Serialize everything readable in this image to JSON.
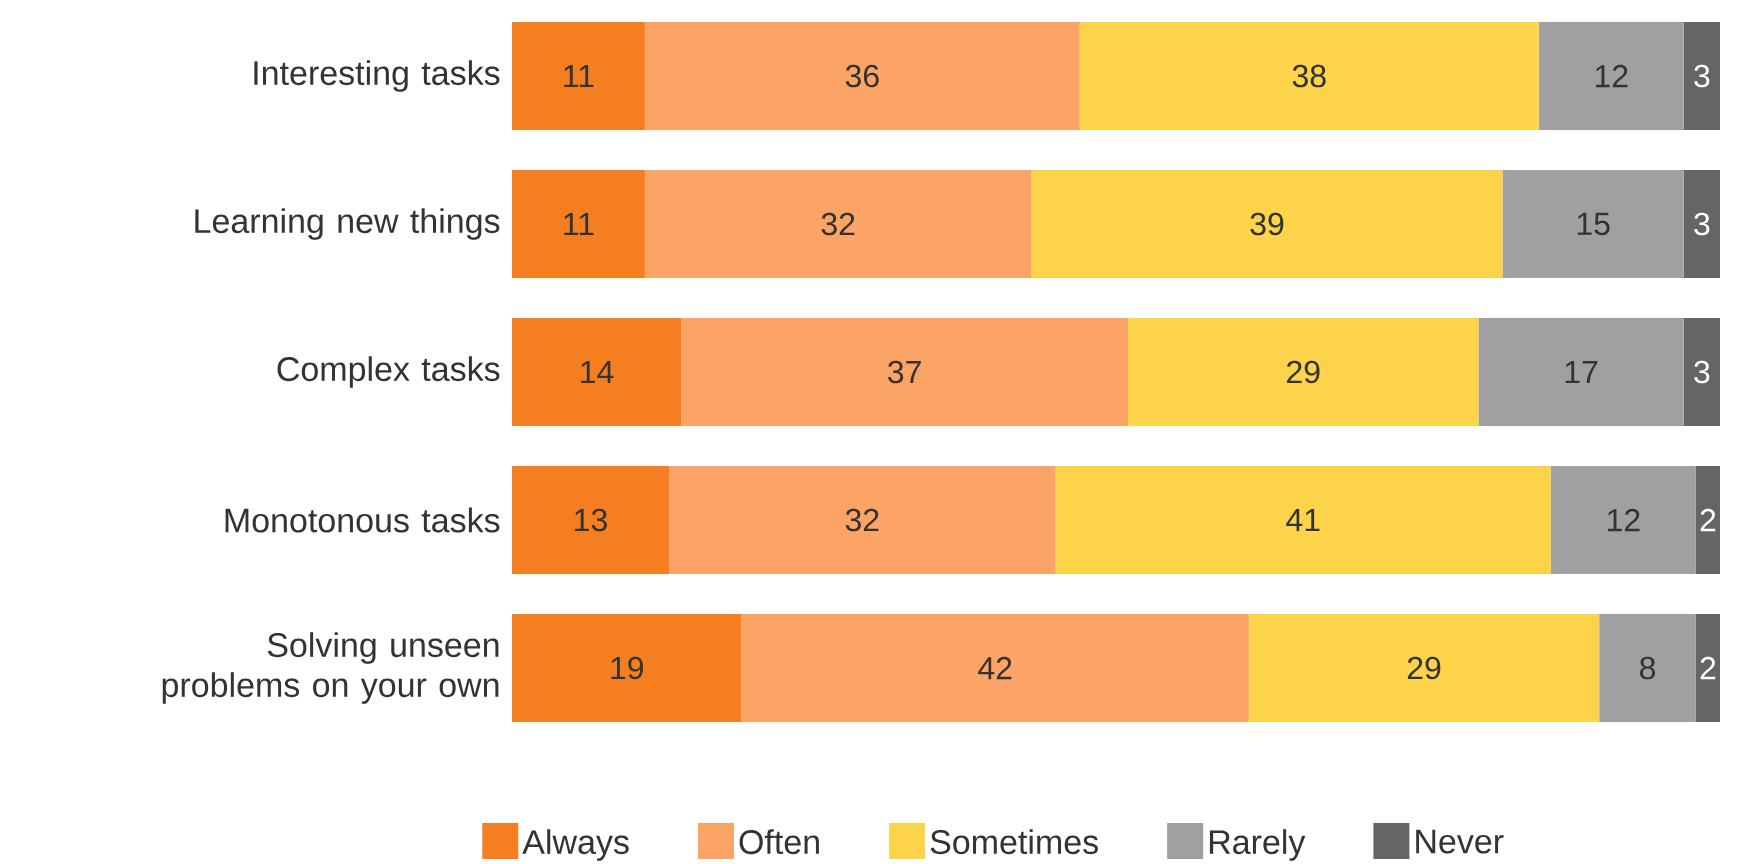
{
  "chart_data": {
    "type": "bar",
    "orientation": "horizontal",
    "stacked": true,
    "data_labels": true,
    "legend": "bottom",
    "categories": [
      "Interesting tasks",
      "Learning new things",
      "Complex tasks",
      "Monotonous tasks",
      "Solving unseen problems on your own"
    ],
    "series": [
      {
        "name": "Always",
        "color": "#f57f20",
        "values": [
          11,
          11,
          14,
          13,
          19
        ]
      },
      {
        "name": "Often",
        "color": "#fca366",
        "values": [
          36,
          32,
          37,
          32,
          42
        ]
      },
      {
        "name": "Sometimes",
        "color": "#fdd34a",
        "values": [
          38,
          39,
          29,
          41,
          29
        ]
      },
      {
        "name": "Rarely",
        "color": "#a0a0a2",
        "values": [
          12,
          15,
          17,
          12,
          8
        ]
      },
      {
        "name": "Never",
        "color": "#656565",
        "values": [
          3,
          3,
          3,
          2,
          2
        ]
      }
    ]
  }
}
